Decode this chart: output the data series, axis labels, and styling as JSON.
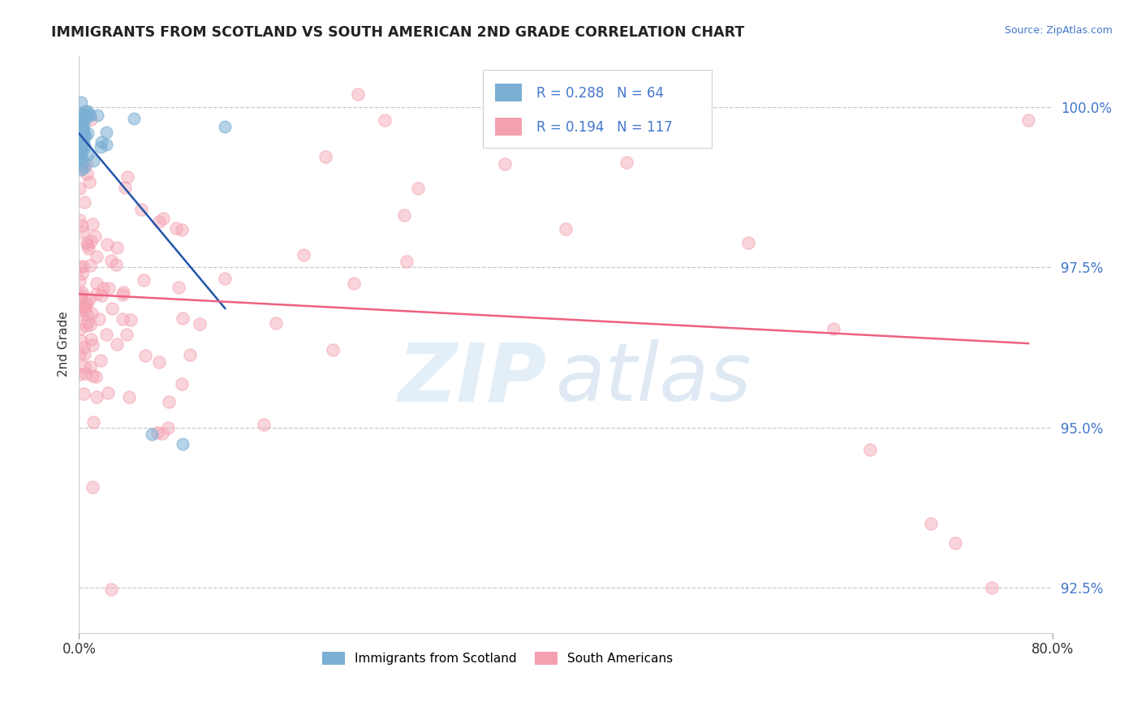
{
  "title": "IMMIGRANTS FROM SCOTLAND VS SOUTH AMERICAN 2ND GRADE CORRELATION CHART",
  "source": "Source: ZipAtlas.com",
  "ylabel": "2nd Grade",
  "r_scotland": 0.288,
  "n_scotland": 64,
  "r_south_american": 0.194,
  "n_south_american": 117,
  "color_scotland": "#7BAFD4",
  "color_south_american": "#F4A0B0",
  "color_trendline_scotland": "#2255AA",
  "color_trendline_south_american": "#EE6080",
  "xlim": [
    0.0,
    80.0
  ],
  "ylim": [
    91.8,
    100.8
  ],
  "yticks": [
    92.5,
    95.0,
    97.5,
    100.0
  ],
  "ytick_labels": [
    "92.5%",
    "95.0%",
    "97.5%",
    "100.0%"
  ],
  "xtick_left": "0.0%",
  "xtick_right": "80.0%",
  "legend_label_scotland": "Immigrants from Scotland",
  "legend_label_south_american": "South Americans"
}
